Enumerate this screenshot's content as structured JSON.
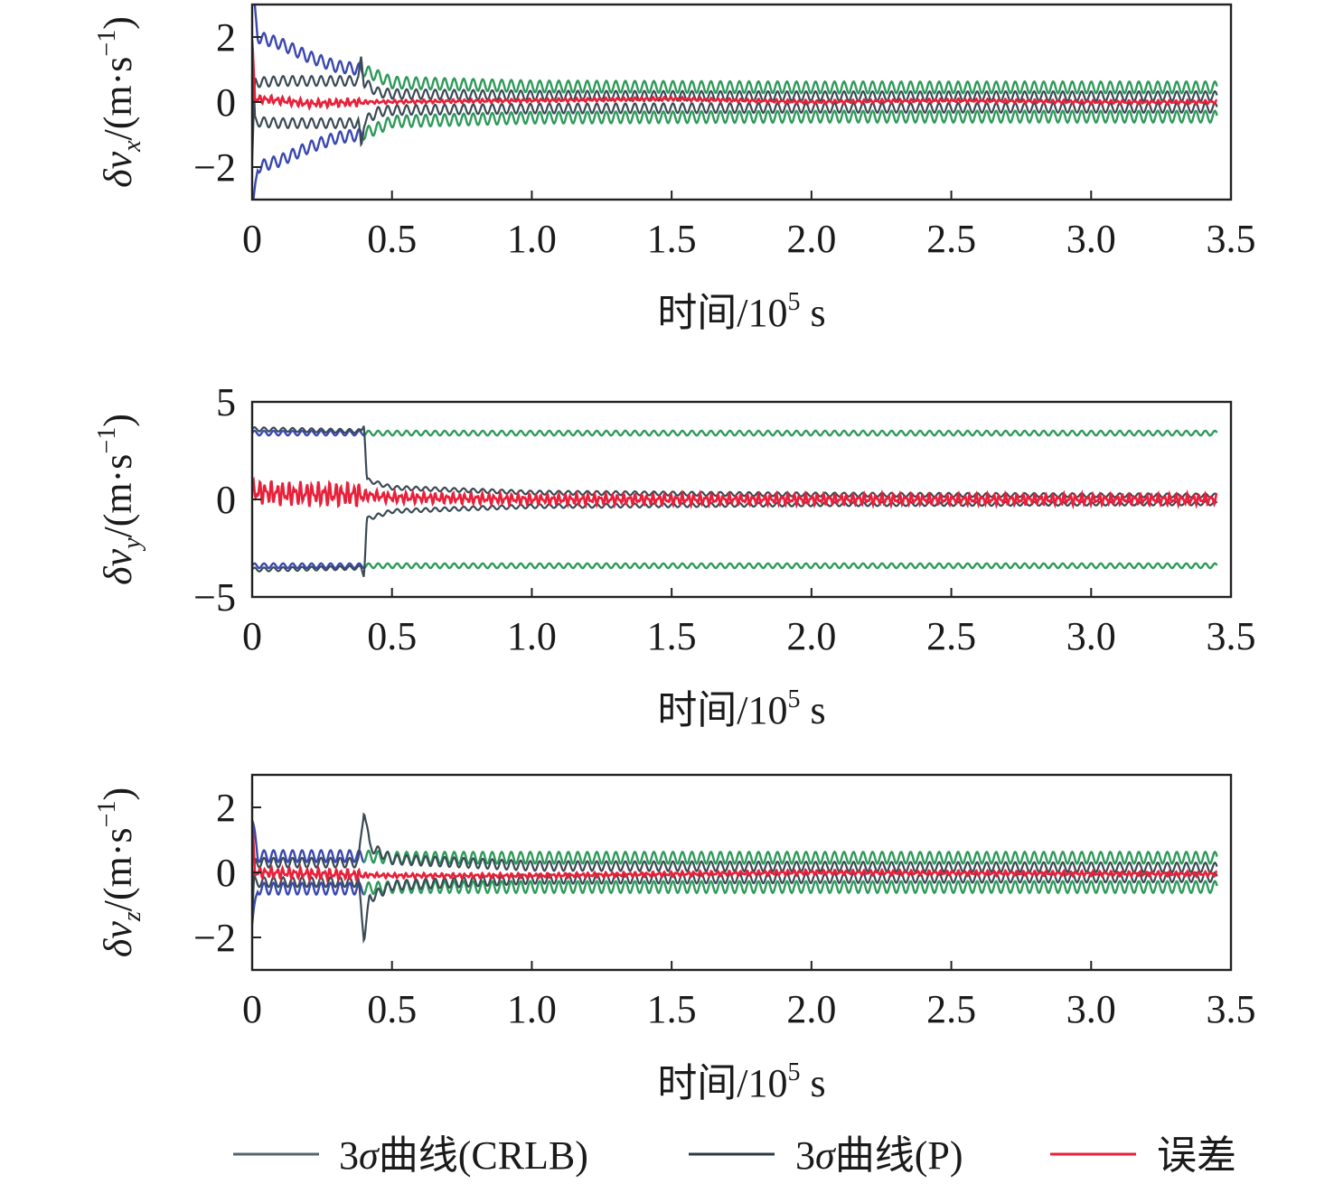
{
  "chart_data": [
    {
      "type": "line",
      "ylabel_delta": "δv",
      "ylabel_sub": "x",
      "ylabel_unit": "/(m·s",
      "ylabel_exp": "−1",
      "ylabel_close": ")",
      "xlabel_main": "时间/10",
      "xlabel_exp": "5",
      "xlabel_unit": " s",
      "xlim": [
        0,
        3.5
      ],
      "ylim": [
        -3,
        3
      ],
      "xticks": [
        0,
        0.5,
        1.0,
        1.5,
        2.0,
        2.5,
        3.0,
        3.5
      ],
      "xtick_labels": [
        "0",
        "0.5",
        "1.0",
        "1.5",
        "2.0",
        "2.5",
        "3.0",
        "3.5"
      ],
      "yticks": [
        -2,
        0,
        2
      ],
      "ytick_labels": [
        "−2",
        "0",
        "2"
      ],
      "series": [
        {
          "key": "crlb",
          "points": [
            [
              0,
              3.5
            ],
            [
              0.02,
              2.0
            ],
            [
              0.1,
              1.8
            ],
            [
              0.2,
              1.4
            ],
            [
              0.3,
              1.1
            ],
            [
              0.39,
              1.0
            ],
            [
              0.45,
              0.8
            ],
            [
              0.5,
              0.6
            ],
            [
              1.0,
              0.48
            ],
            [
              2.0,
              0.45
            ],
            [
              3.0,
              0.45
            ],
            [
              3.45,
              0.45
            ]
          ],
          "osc": 0.18,
          "symmetric": true
        },
        {
          "key": "P",
          "points": [
            [
              0,
              -1.8
            ],
            [
              0.01,
              0.6
            ],
            [
              0.1,
              0.65
            ],
            [
              0.38,
              0.65
            ],
            [
              0.39,
              1.4
            ],
            [
              0.4,
              0.6
            ],
            [
              0.45,
              0.3
            ],
            [
              0.5,
              0.25
            ],
            [
              1.0,
              0.2
            ],
            [
              2.0,
              0.18
            ],
            [
              3.45,
              0.18
            ]
          ],
          "osc": 0.15,
          "symmetric": true
        },
        {
          "key": "err",
          "points": [
            [
              0,
              1.9
            ],
            [
              0.01,
              0.1
            ],
            [
              0.1,
              0.05
            ],
            [
              0.2,
              -0.05
            ],
            [
              0.4,
              0.0
            ],
            [
              1.0,
              0.05
            ],
            [
              1.5,
              0.1
            ],
            [
              2.0,
              0.0
            ],
            [
              2.5,
              0.05
            ],
            [
              3.0,
              0.0
            ],
            [
              3.45,
              0.0
            ]
          ],
          "osc": 0.06,
          "symmetric": false
        }
      ]
    },
    {
      "type": "line",
      "ylabel_delta": "δv",
      "ylabel_sub": "y",
      "ylabel_unit": "/(m·s",
      "ylabel_exp": "−1",
      "ylabel_close": ")",
      "xlabel_main": "时间/10",
      "xlabel_exp": "5",
      "xlabel_unit": " s",
      "xlim": [
        0,
        3.5
      ],
      "ylim": [
        -5,
        5
      ],
      "xticks": [
        0,
        0.5,
        1.0,
        1.5,
        2.0,
        2.5,
        3.0,
        3.5
      ],
      "xtick_labels": [
        "0",
        "0.5",
        "1.0",
        "1.5",
        "2.0",
        "2.5",
        "3.0",
        "3.5"
      ],
      "yticks": [
        -5,
        0,
        5
      ],
      "ytick_labels": [
        "−5",
        "0",
        "5"
      ],
      "series": [
        {
          "key": "crlb",
          "points": [
            [
              0,
              3.4
            ],
            [
              0.4,
              3.4
            ],
            [
              1.0,
              3.4
            ],
            [
              2.0,
              3.4
            ],
            [
              3.45,
              3.4
            ]
          ],
          "osc": 0.12,
          "symmetric": true
        },
        {
          "key": "P",
          "points": [
            [
              0,
              3.6
            ],
            [
              0.39,
              3.5
            ],
            [
              0.4,
              3.9
            ],
            [
              0.41,
              1.0
            ],
            [
              0.5,
              0.6
            ],
            [
              1.0,
              0.35
            ],
            [
              2.0,
              0.25
            ],
            [
              3.45,
              0.2
            ]
          ],
          "osc": 0.1,
          "symmetric": true
        },
        {
          "key": "err",
          "points": [
            [
              0,
              0.4
            ],
            [
              0.1,
              0.3
            ],
            [
              0.39,
              0.25
            ],
            [
              0.5,
              0.1
            ],
            [
              1.0,
              0.0
            ],
            [
              2.0,
              0.0
            ],
            [
              3.45,
              0.0
            ]
          ],
          "osc": 0.3,
          "symmetric": false
        }
      ]
    },
    {
      "type": "line",
      "ylabel_delta": "δv",
      "ylabel_sub": "z",
      "ylabel_unit": "/(m·s",
      "ylabel_exp": "−1",
      "ylabel_close": ")",
      "xlabel_main": "时间/10",
      "xlabel_exp": "5",
      "xlabel_unit": " s",
      "xlim": [
        0,
        3.5
      ],
      "ylim": [
        -3,
        3
      ],
      "xticks": [
        0,
        0.5,
        1.0,
        1.5,
        2.0,
        2.5,
        3.0,
        3.5
      ],
      "xtick_labels": [
        "0",
        "0.5",
        "1.0",
        "1.5",
        "2.0",
        "2.5",
        "3.0",
        "3.5"
      ],
      "yticks": [
        -2,
        0,
        2
      ],
      "ytick_labels": [
        "−2",
        "0",
        "2"
      ],
      "series": [
        {
          "key": "crlb",
          "points": [
            [
              0,
              1.6
            ],
            [
              0.02,
              0.5
            ],
            [
              0.39,
              0.5
            ],
            [
              0.5,
              0.45
            ],
            [
              1.0,
              0.45
            ],
            [
              3.45,
              0.45
            ]
          ],
          "osc": 0.18,
          "symmetric": true
        },
        {
          "key": "P",
          "points": [
            [
              0,
              -1.5
            ],
            [
              0.01,
              0.3
            ],
            [
              0.38,
              0.3
            ],
            [
              0.4,
              2.0
            ],
            [
              0.42,
              0.8
            ],
            [
              0.5,
              0.4
            ],
            [
              1.0,
              0.2
            ],
            [
              3.45,
              0.15
            ]
          ],
          "osc": 0.15,
          "symmetric": true
        },
        {
          "key": "err",
          "points": [
            [
              0,
              1.5
            ],
            [
              0.01,
              0.0
            ],
            [
              0.5,
              -0.1
            ],
            [
              1.0,
              -0.1
            ],
            [
              2.0,
              0.0
            ],
            [
              3.45,
              -0.05
            ]
          ],
          "osc": 0.08,
          "symmetric": false
        }
      ]
    }
  ],
  "legend": [
    {
      "key": "crlb",
      "prefix": "3",
      "sigma": "σ",
      "suffix": "曲线(CRLB)",
      "color": "#55656f"
    },
    {
      "key": "P",
      "prefix": "3",
      "sigma": "σ",
      "suffix": "曲线(P)",
      "color": "#2c3a44"
    },
    {
      "key": "err",
      "label": "误差",
      "color": "#e8203a"
    }
  ],
  "colors": {
    "crlb_early": "#3a48b0",
    "crlb_late": "#2e9a5a",
    "P": "#3a4a55",
    "err": "#e8203a",
    "axis": "#222222"
  }
}
